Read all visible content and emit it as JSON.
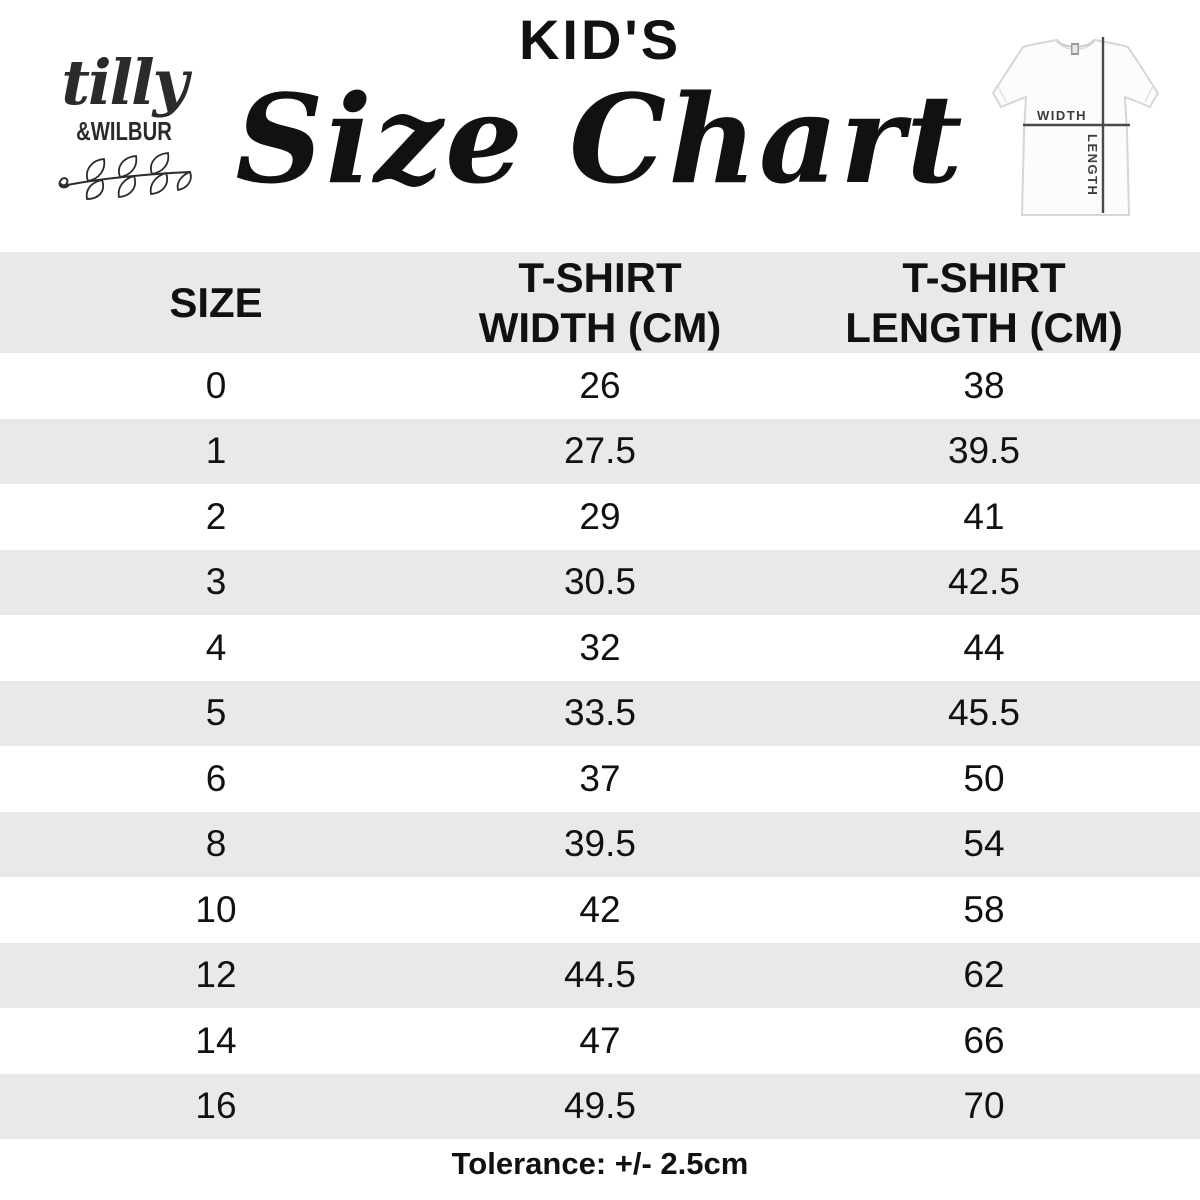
{
  "logo": {
    "script_name": "tilly",
    "caps_name": "&WILBUR"
  },
  "header": {
    "kicker": "KID'S",
    "title": "Size Chart"
  },
  "tshirt_diagram": {
    "width_label": "WIDTH",
    "length_label": "LENGTH"
  },
  "table": {
    "columns": [
      "SIZE",
      "T-SHIRT\nWIDTH (CM)",
      "T-SHIRT\nLENGTH (CM)"
    ],
    "rows": [
      [
        "0",
        "26",
        "38"
      ],
      [
        "1",
        "27.5",
        "39.5"
      ],
      [
        "2",
        "29",
        "41"
      ],
      [
        "3",
        "30.5",
        "42.5"
      ],
      [
        "4",
        "32",
        "44"
      ],
      [
        "5",
        "33.5",
        "45.5"
      ],
      [
        "6",
        "37",
        "50"
      ],
      [
        "8",
        "39.5",
        "54"
      ],
      [
        "10",
        "42",
        "58"
      ],
      [
        "12",
        "44.5",
        "62"
      ],
      [
        "14",
        "47",
        "66"
      ],
      [
        "16",
        "49.5",
        "70"
      ]
    ]
  },
  "footer": {
    "tolerance": "Tolerance: +/- 2.5cm"
  },
  "colors": {
    "row_alt": "#e9e9e9",
    "text": "#111111",
    "diagram_line": "#4a4a4a"
  },
  "chart_data": {
    "type": "table",
    "title": "KID'S Size Chart",
    "columns": [
      "SIZE",
      "T-SHIRT WIDTH (CM)",
      "T-SHIRT LENGTH (CM)"
    ],
    "sizes": [
      "0",
      "1",
      "2",
      "3",
      "4",
      "5",
      "6",
      "8",
      "10",
      "12",
      "14",
      "16"
    ],
    "series": [
      {
        "name": "T-SHIRT WIDTH (CM)",
        "values": [
          26,
          27.5,
          29,
          30.5,
          32,
          33.5,
          37,
          39.5,
          42,
          44.5,
          47,
          49.5
        ]
      },
      {
        "name": "T-SHIRT LENGTH (CM)",
        "values": [
          38,
          39.5,
          41,
          42.5,
          44,
          45.5,
          50,
          54,
          58,
          62,
          66,
          70
        ]
      }
    ],
    "note": "Tolerance: +/- 2.5cm"
  }
}
